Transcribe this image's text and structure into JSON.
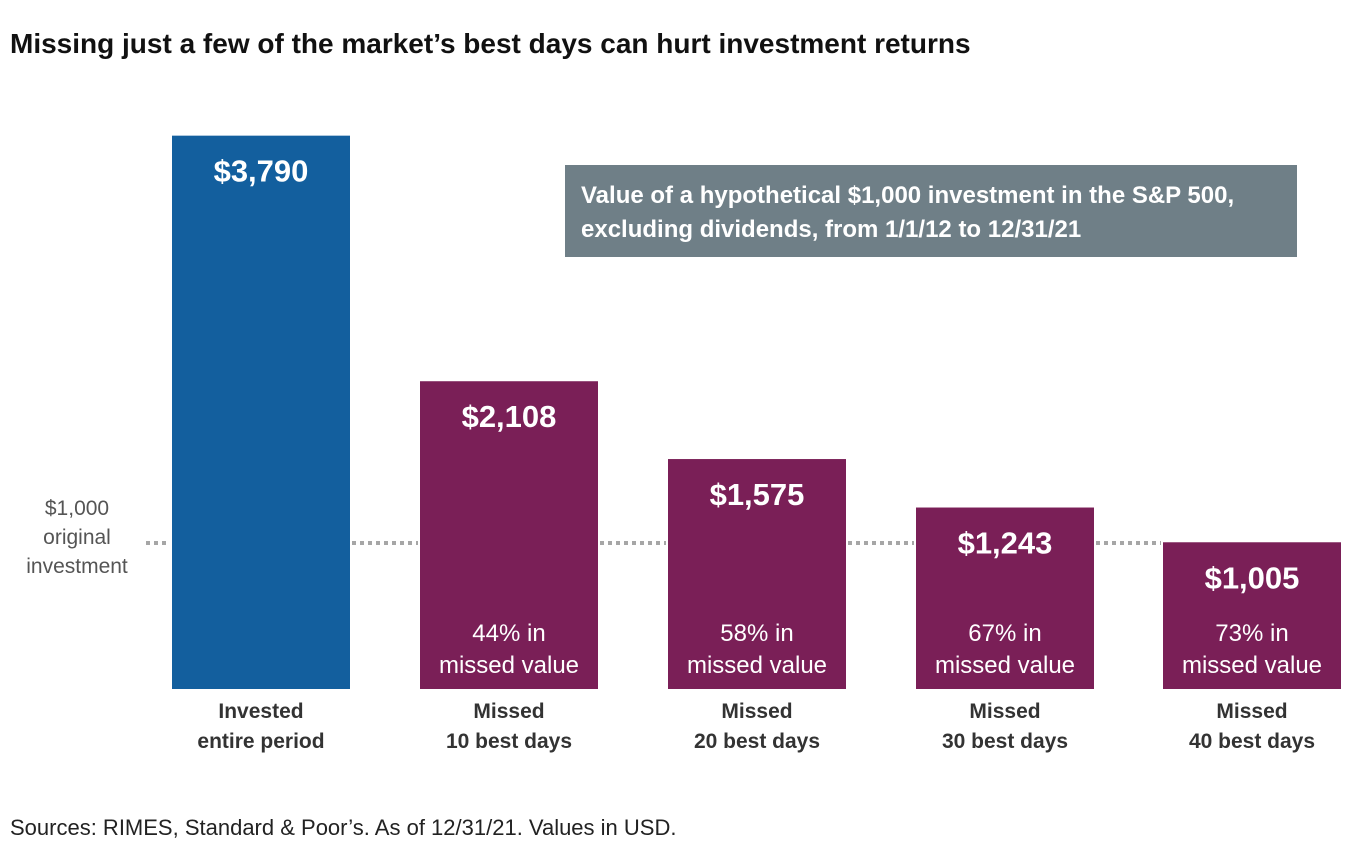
{
  "title": "Missing just a few of the market’s best days can hurt investment returns",
  "note": {
    "line1": "Value of a hypothetical $1,000 investment in the S&P 500,",
    "line2": "excluding dividends, from 1/1/12 to 12/31/21"
  },
  "baseline": {
    "value": 1000,
    "label_lines": [
      "$1,000",
      "original",
      "investment"
    ]
  },
  "source": "Sources: RIMES, Standard & Poor’s. As of 12/31/21. Values in USD.",
  "colors": {
    "invested": "#135f9e",
    "missed": "#7a1f57",
    "note_bg": "#6f7f87",
    "baseline": "#a6a6a6"
  },
  "chart_data": {
    "type": "bar",
    "categories": [
      [
        "Invested",
        "entire period"
      ],
      [
        "Missed",
        "10 best days"
      ],
      [
        "Missed",
        "20 best days"
      ],
      [
        "Missed",
        "30 best days"
      ],
      [
        "Missed",
        "40 best days"
      ]
    ],
    "values": [
      3790,
      2108,
      1575,
      1243,
      1005
    ],
    "value_labels": [
      "$3,790",
      "$2,108",
      "$1,575",
      "$1,243",
      "$1,005"
    ],
    "sub_labels": [
      null,
      [
        "44% in",
        "missed value"
      ],
      [
        "58% in",
        "missed value"
      ],
      [
        "67% in",
        "missed value"
      ],
      [
        "73% in",
        "missed value"
      ]
    ],
    "bar_colors": [
      "#135f9e",
      "#7a1f57",
      "#7a1f57",
      "#7a1f57",
      "#7a1f57"
    ],
    "reference_line": 1000,
    "grid": false,
    "legend": "none"
  }
}
